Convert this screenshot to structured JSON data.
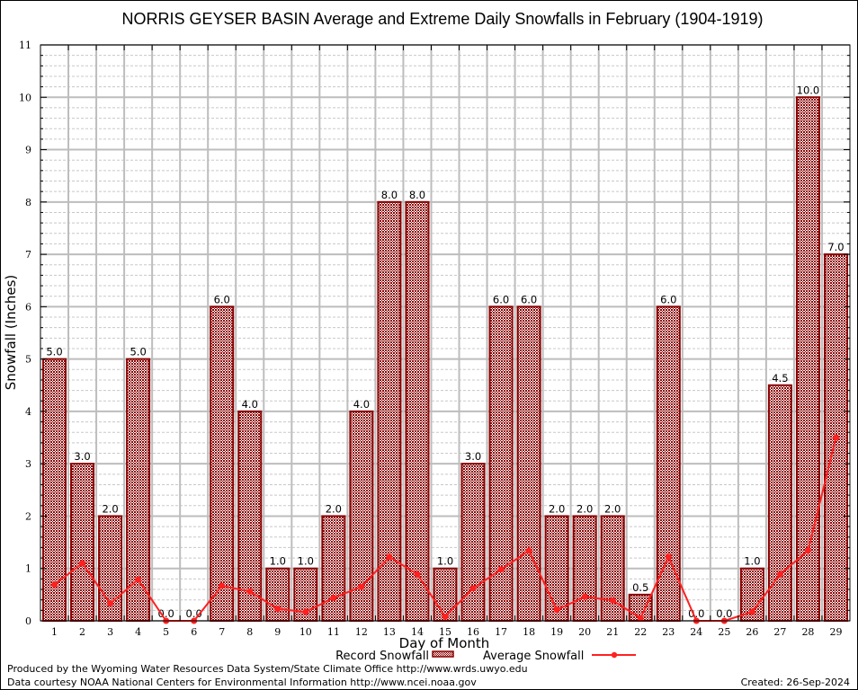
{
  "chart_data": {
    "type": "bar",
    "title": "NORRIS GEYSER BASIN Average and Extreme Daily Snowfalls in February (1904-1919)",
    "xlabel": "Day of Month",
    "ylabel": "Snowfall (Inches)",
    "ylim": [
      0,
      11
    ],
    "yticks": [
      "0",
      "1",
      "2",
      "3",
      "4",
      "5",
      "6",
      "7",
      "8",
      "9",
      "10",
      "11"
    ],
    "grid": true,
    "categories": [
      "1",
      "2",
      "3",
      "4",
      "5",
      "6",
      "7",
      "8",
      "9",
      "10",
      "11",
      "12",
      "13",
      "14",
      "15",
      "16",
      "17",
      "18",
      "19",
      "20",
      "21",
      "22",
      "23",
      "24",
      "25",
      "26",
      "27",
      "28",
      "29"
    ],
    "series": [
      {
        "name": "Record Snowfall",
        "type": "bar",
        "color": "#8b0000",
        "values": [
          5.0,
          3.0,
          2.0,
          5.0,
          0.0,
          0.0,
          6.0,
          4.0,
          1.0,
          1.0,
          2.0,
          4.0,
          8.0,
          8.0,
          1.0,
          3.0,
          6.0,
          6.0,
          2.0,
          2.0,
          2.0,
          0.5,
          6.0,
          0.0,
          0.0,
          1.0,
          4.5,
          10.0,
          7.0
        ],
        "labels": [
          "5.0",
          "3.0",
          "2.0",
          "5.0",
          "0.0",
          "0.0",
          "6.0",
          "4.0",
          "1.0",
          "1.0",
          "2.0",
          "4.0",
          "8.0",
          "8.0",
          "1.0",
          "3.0",
          "6.0",
          "6.0",
          "2.0",
          "2.0",
          "2.0",
          "0.5",
          "6.0",
          "0.0",
          "0.0",
          "1.0",
          "4.5",
          "10.0",
          "7.0"
        ]
      },
      {
        "name": "Average Snowfall",
        "type": "line",
        "color": "#ff2020",
        "values": [
          0.69,
          1.1,
          0.33,
          0.79,
          0.0,
          0.0,
          0.67,
          0.56,
          0.23,
          0.17,
          0.44,
          0.65,
          1.22,
          0.89,
          0.08,
          0.62,
          0.98,
          1.34,
          0.21,
          0.46,
          0.39,
          0.05,
          1.22,
          0.0,
          0.0,
          0.17,
          0.89,
          1.34,
          3.5
        ]
      }
    ],
    "legend": {
      "placement": "bottom",
      "items": [
        "Record Snowfall",
        "Average Snowfall"
      ]
    }
  },
  "footer": {
    "line1": "Produced by the Wyoming Water Resources Data System/State Climate Office http://www.wrds.uwyo.edu",
    "line2": "Data courtesy NOAA National Centers for Environmental Information http://www.ncei.noaa.gov",
    "created": "Created: 26-Sep-2024"
  }
}
